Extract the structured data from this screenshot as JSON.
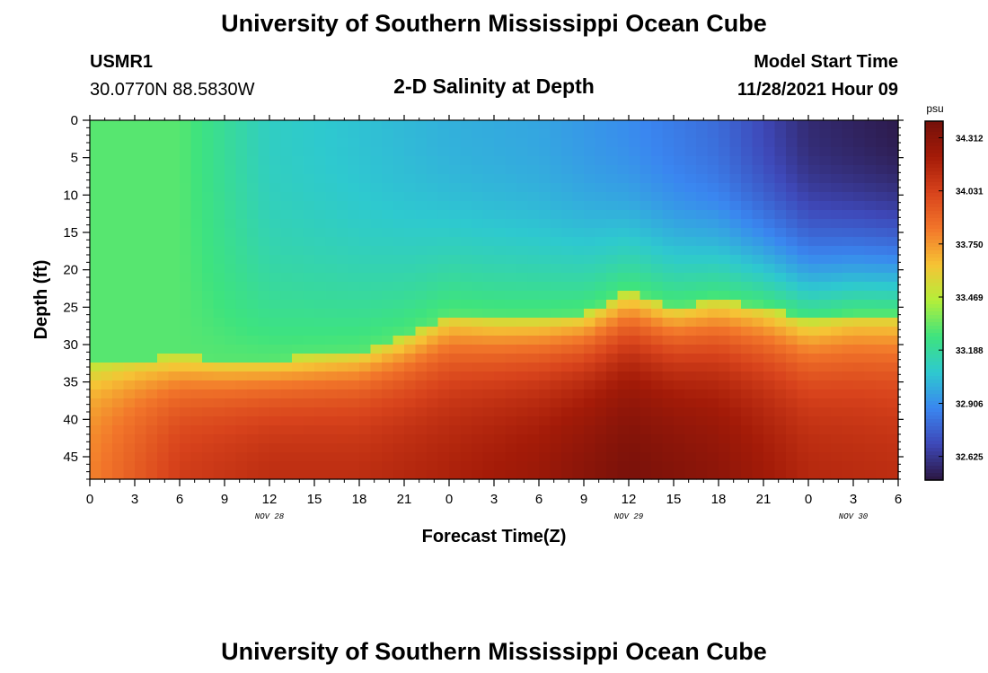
{
  "header": {
    "title": "University of Southern Mississippi Ocean Cube",
    "station": "USMR1",
    "coordinates": "30.0770N  88.5830W",
    "plot_title": "2-D Salinity at Depth",
    "model_start_label": "Model Start Time",
    "model_start_value": "11/28/2021 Hour 09"
  },
  "footer": {
    "title": "University of Southern Mississippi Ocean Cube"
  },
  "chart_data": {
    "type": "heatmap",
    "title": "2-D Salinity at Depth",
    "xlabel": "Forecast Time(Z)",
    "ylabel": "Depth (ft)",
    "x_range_hours": [
      0,
      54
    ],
    "y_range_ft": [
      0,
      48
    ],
    "y_inverted": true,
    "x_ticks": [
      "0",
      "3",
      "6",
      "9",
      "12",
      "15",
      "18",
      "21",
      "0",
      "3",
      "6",
      "9",
      "12",
      "15",
      "18",
      "21",
      "0",
      "3",
      "6"
    ],
    "x_tick_hours": [
      0,
      3,
      6,
      9,
      12,
      15,
      18,
      21,
      24,
      27,
      30,
      33,
      36,
      39,
      42,
      45,
      48,
      51,
      54
    ],
    "y_ticks": [
      0,
      5,
      10,
      15,
      20,
      25,
      30,
      35,
      40,
      45
    ],
    "date_labels": [
      {
        "text": "NOV 28",
        "hour": 12
      },
      {
        "text": "NOV 29",
        "hour": 36
      },
      {
        "text": "NOV 30",
        "hour": 51
      }
    ],
    "colorbar": {
      "unit": "psu",
      "min": 32.5,
      "max": 34.4,
      "ticks": [
        "34.312",
        "34.031",
        "33.750",
        "33.469",
        "33.188",
        "32.906",
        "32.625"
      ],
      "tick_values": [
        34.312,
        34.031,
        33.75,
        33.469,
        33.188,
        32.906,
        32.625
      ],
      "colors": [
        "#2b1641",
        "#3e48b8",
        "#3a86f0",
        "#2ec9cf",
        "#3ee37e",
        "#b4ef3a",
        "#f6c335",
        "#f2762a",
        "#d8431c",
        "#a41b08",
        "#74100a"
      ]
    },
    "grid": false,
    "halocline_depth_ft": {
      "hours": [
        0,
        3,
        6,
        9,
        12,
        15,
        18,
        21,
        24,
        27,
        30,
        33,
        36,
        39,
        42,
        45,
        48,
        51,
        54
      ],
      "depths": [
        33,
        32,
        31.5,
        32,
        32,
        31.5,
        31,
        29,
        26,
        26.5,
        26.5,
        26,
        23,
        25,
        24,
        25,
        27,
        26,
        26
      ]
    },
    "surface_salinity_psu": {
      "hours": [
        0,
        6,
        12,
        18,
        24,
        30,
        36,
        42,
        48,
        54
      ],
      "values": [
        33.3,
        33.3,
        33.1,
        33.05,
        33.0,
        32.97,
        32.9,
        32.8,
        32.58,
        32.52
      ]
    },
    "bottom_salinity_psu": {
      "hours": [
        0,
        6,
        12,
        18,
        24,
        30,
        36,
        42,
        48,
        54
      ],
      "values": [
        33.8,
        34.05,
        34.12,
        34.12,
        34.18,
        34.25,
        34.38,
        34.3,
        34.15,
        34.12
      ]
    }
  }
}
